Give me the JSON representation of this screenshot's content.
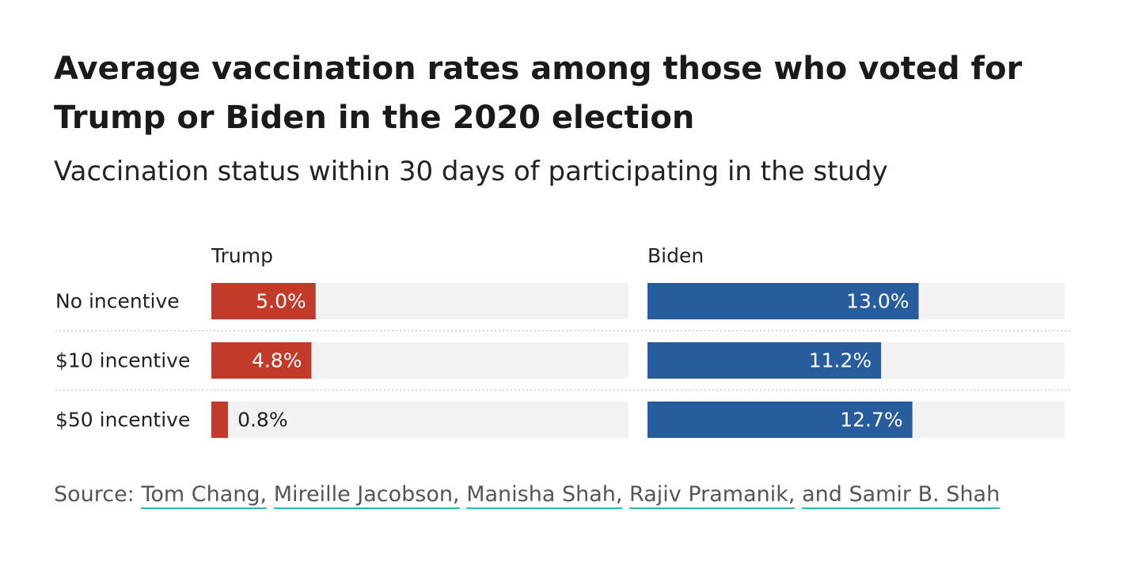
{
  "chart_data": {
    "type": "bar",
    "title": "Average vaccination rates among those who voted for Trump or Biden in the 2020 election",
    "subtitle": "Vaccination status within 30 days of participating in the study",
    "categories": [
      "No incentive",
      "$10 incentive",
      "$50 incentive"
    ],
    "series": [
      {
        "name": "Trump",
        "color": "#c23b2a",
        "values": [
          5.0,
          4.8,
          0.8
        ],
        "labels": [
          "5.0%",
          "4.8%",
          "0.8%"
        ]
      },
      {
        "name": "Biden",
        "color": "#275d9c",
        "values": [
          13.0,
          11.2,
          12.7
        ],
        "labels": [
          "13.0%",
          "11.2%",
          "12.7%"
        ]
      }
    ],
    "xlim": [
      0,
      20
    ],
    "track_color": "#f2f2f2",
    "grid": false,
    "orientation": "horizontal",
    "layout": "small-multiples"
  },
  "source": {
    "prefix": "Source:",
    "authors": [
      "Tom Chang,",
      "Mireille Jacobson,",
      "Manisha Shah,",
      "Rajiv Pramanik,",
      "and Samir B. Shah"
    ]
  }
}
